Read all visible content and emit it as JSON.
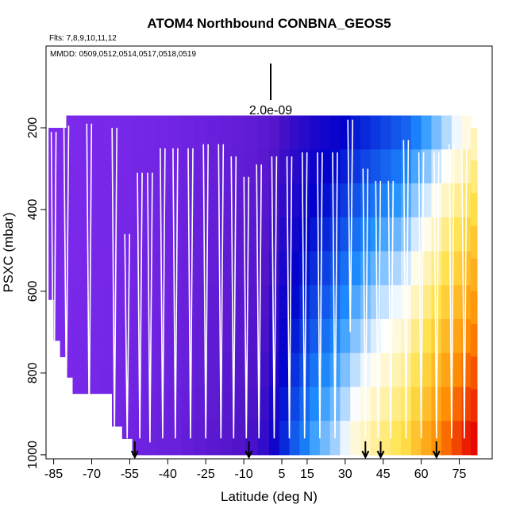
{
  "chart_data": {
    "type": "heatmap",
    "title": "ATOM4 Northbound CONBNA_GEOS5",
    "subtitle_flights": "Flts: 7,8,9,10,11,12",
    "dates_label": "MMDD: 0509,0512,0514,0517,0518,0519",
    "scale_label": "2.0e-09",
    "xlabel": "Latitude (deg N)",
    "ylabel": "PSXC (mbar)",
    "xlim": [
      -88,
      88
    ],
    "ylim": [
      1010,
      0
    ],
    "x_ticks": [
      -85,
      -70,
      -55,
      -40,
      -25,
      -10,
      5,
      15,
      30,
      45,
      60,
      75
    ],
    "x_tick_labels": [
      "-85",
      "-70",
      "-55",
      "-40",
      "-25",
      "-10",
      "5",
      "15",
      "30",
      "45",
      "60",
      "75"
    ],
    "y_ticks": [
      200,
      400,
      600,
      800,
      1000
    ],
    "y_tick_labels": [
      "200",
      "400",
      "600",
      "800",
      "1000"
    ],
    "arrow_latitudes": [
      -53,
      -8,
      38,
      44,
      66
    ],
    "grid": false,
    "legend": "none",
    "colors": {
      "low": "#7f2bee",
      "mid_low": "#0000cc",
      "mid": "#1e90ff",
      "mid_high": "#ffffff",
      "high_yellow": "#ffe24a",
      "high_orange": "#ff8c00",
      "max": "#e60000",
      "profile_line": "#ffffff"
    },
    "columns": [
      {
        "lat": -86,
        "top": 200,
        "bottom": 620,
        "value": 0.02
      },
      {
        "lat": -84,
        "top": 200,
        "bottom": 720,
        "value": 0.02
      },
      {
        "lat": -81,
        "top": 200,
        "bottom": 760,
        "value": 0.02
      },
      {
        "lat": -79,
        "top": 170,
        "bottom": 810,
        "value": 0.03
      },
      {
        "lat": -76,
        "top": 170,
        "bottom": 850,
        "value": 0.03
      },
      {
        "lat": -72,
        "top": 170,
        "bottom": 850,
        "value": 0.04
      },
      {
        "lat": -68,
        "top": 170,
        "bottom": 850,
        "value": 0.04
      },
      {
        "lat": -64,
        "top": 170,
        "bottom": 850,
        "value": 0.05
      },
      {
        "lat": -60,
        "top": 170,
        "bottom": 930,
        "value": 0.05
      },
      {
        "lat": -56,
        "top": 170,
        "bottom": 960,
        "value": 0.06
      },
      {
        "lat": -52,
        "top": 170,
        "bottom": 1000,
        "value": 0.07
      },
      {
        "lat": -47,
        "top": 170,
        "bottom": 1000,
        "value": 0.08
      },
      {
        "lat": -42,
        "top": 170,
        "bottom": 1000,
        "value": 0.09
      },
      {
        "lat": -37,
        "top": 170,
        "bottom": 1000,
        "value": 0.1
      },
      {
        "lat": -32,
        "top": 170,
        "bottom": 1000,
        "value": 0.12
      },
      {
        "lat": -27,
        "top": 170,
        "bottom": 1000,
        "value": 0.14
      },
      {
        "lat": -22,
        "top": 170,
        "bottom": 1000,
        "value": 0.16
      },
      {
        "lat": -17,
        "top": 170,
        "bottom": 1000,
        "value": 0.18
      },
      {
        "lat": -12,
        "top": 170,
        "bottom": 1000,
        "value": 0.2
      },
      {
        "lat": -7,
        "top": 170,
        "bottom": 1000,
        "value": 0.22
      },
      {
        "lat": -2,
        "top": 170,
        "bottom": 1000,
        "value": 0.25
      },
      {
        "lat": 2,
        "top": 170,
        "bottom": 1000,
        "value": 0.3
      },
      {
        "lat": 6,
        "top": 170,
        "bottom": 1000,
        "value": 0.36
      },
      {
        "lat": 10,
        "top": 170,
        "bottom": 1000,
        "value": 0.4
      },
      {
        "lat": 14,
        "top": 170,
        "bottom": 1000,
        "value": 0.43
      },
      {
        "lat": 18,
        "top": 170,
        "bottom": 1000,
        "value": 0.46
      },
      {
        "lat": 22,
        "top": 170,
        "bottom": 1000,
        "value": 0.48
      },
      {
        "lat": 26,
        "top": 170,
        "bottom": 1000,
        "value": 0.5
      },
      {
        "lat": 30,
        "top": 170,
        "bottom": 1000,
        "value": 0.53
      },
      {
        "lat": 34,
        "top": 170,
        "bottom": 1000,
        "value": 0.56
      },
      {
        "lat": 38,
        "top": 170,
        "bottom": 1000,
        "value": 0.58
      },
      {
        "lat": 42,
        "top": 170,
        "bottom": 1000,
        "value": 0.6
      },
      {
        "lat": 46,
        "top": 170,
        "bottom": 1000,
        "value": 0.62
      },
      {
        "lat": 50,
        "top": 170,
        "bottom": 1000,
        "value": 0.64
      },
      {
        "lat": 54,
        "top": 170,
        "bottom": 1000,
        "value": 0.66
      },
      {
        "lat": 58,
        "top": 170,
        "bottom": 1000,
        "value": 0.7
      },
      {
        "lat": 62,
        "top": 170,
        "bottom": 1000,
        "value": 0.74
      },
      {
        "lat": 66,
        "top": 170,
        "bottom": 1000,
        "value": 0.78
      },
      {
        "lat": 70,
        "top": 170,
        "bottom": 1000,
        "value": 0.82
      },
      {
        "lat": 74,
        "top": 170,
        "bottom": 1000,
        "value": 0.86
      },
      {
        "lat": 78,
        "top": 170,
        "bottom": 1000,
        "value": 0.9
      },
      {
        "lat": 81,
        "top": 200,
        "bottom": 1000,
        "value": 0.92
      }
    ],
    "profile_dives": [
      {
        "lat": -85,
        "top": 210,
        "bottom": 1000
      },
      {
        "lat": -80,
        "top": 195,
        "bottom": 850
      },
      {
        "lat": -71,
        "top": 190,
        "bottom": 930
      },
      {
        "lat": -61,
        "top": 200,
        "bottom": 950
      },
      {
        "lat": -56,
        "top": 460,
        "bottom": 960
      },
      {
        "lat": -51,
        "top": 310,
        "bottom": 960
      },
      {
        "lat": -47,
        "top": 310,
        "bottom": 970
      },
      {
        "lat": -42,
        "top": 250,
        "bottom": 960
      },
      {
        "lat": -37,
        "top": 250,
        "bottom": 960
      },
      {
        "lat": -31,
        "top": 250,
        "bottom": 960
      },
      {
        "lat": -25,
        "top": 240,
        "bottom": 960
      },
      {
        "lat": -19,
        "top": 240,
        "bottom": 960
      },
      {
        "lat": -14,
        "top": 270,
        "bottom": 960
      },
      {
        "lat": -9,
        "top": 320,
        "bottom": 960
      },
      {
        "lat": -4,
        "top": 290,
        "bottom": 960
      },
      {
        "lat": 2,
        "top": 270,
        "bottom": 960
      },
      {
        "lat": 8,
        "top": 270,
        "bottom": 960
      },
      {
        "lat": 14,
        "top": 260,
        "bottom": 960
      },
      {
        "lat": 20,
        "top": 260,
        "bottom": 960
      },
      {
        "lat": 26,
        "top": 260,
        "bottom": 960
      },
      {
        "lat": 32,
        "top": 180,
        "bottom": 700
      },
      {
        "lat": 38,
        "top": 300,
        "bottom": 960
      },
      {
        "lat": 43,
        "top": 330,
        "bottom": 960
      },
      {
        "lat": 48,
        "top": 330,
        "bottom": 960
      },
      {
        "lat": 54,
        "top": 230,
        "bottom": 960
      },
      {
        "lat": 60,
        "top": 260,
        "bottom": 960
      },
      {
        "lat": 66,
        "top": 260,
        "bottom": 960
      },
      {
        "lat": 72,
        "top": 240,
        "bottom": 960
      },
      {
        "lat": 77,
        "top": 250,
        "bottom": 960
      }
    ]
  }
}
